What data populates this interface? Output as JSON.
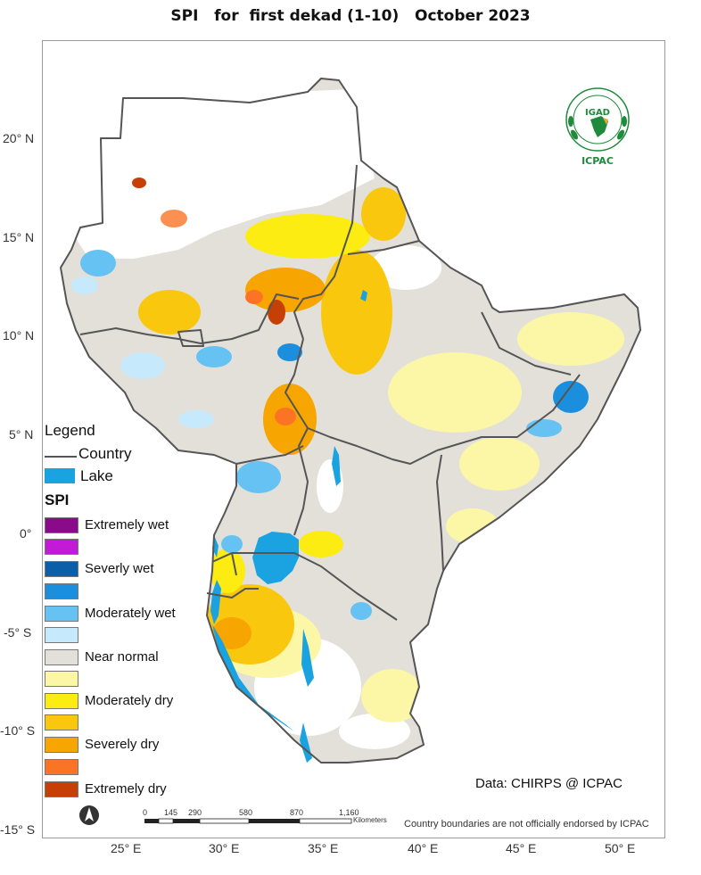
{
  "title": "SPI   for  first dekad (1-10)   October 2023",
  "latitude_labels": [
    "20° N",
    "15° N",
    "10° N",
    "5° N",
    "0°",
    "-5° S",
    "-10° S",
    "-15° S"
  ],
  "longitude_labels": [
    "25° E",
    "30° E",
    "35° E",
    "40° E",
    "45° E",
    "50° E"
  ],
  "legend": {
    "title": "Legend",
    "country_label": "Country",
    "lake_label": "Lake",
    "lake_color": "#1aa3e0",
    "spi_title": "SPI",
    "classes": [
      {
        "label": "Extremely wet",
        "color": "#8b0a8b"
      },
      {
        "label": "",
        "color": "#c21ad6"
      },
      {
        "label": "Severly wet",
        "color": "#0a5fa8"
      },
      {
        "label": "",
        "color": "#1b8fdd"
      },
      {
        "label": "Moderately wet",
        "color": "#66c2f2"
      },
      {
        "label": "",
        "color": "#c6e9fb"
      },
      {
        "label": "Near normal",
        "color": "#e3e0da"
      },
      {
        "label": "",
        "color": "#fbf7a6"
      },
      {
        "label": "Moderately dry",
        "color": "#fdec12"
      },
      {
        "label": "",
        "color": "#f9c80e"
      },
      {
        "label": "Severely dry",
        "color": "#f7a500"
      },
      {
        "label": "",
        "color": "#fb7426"
      },
      {
        "label": "Extremely dry",
        "color": "#c64005"
      }
    ]
  },
  "source": "Data: CHIRPS @ ICPAC",
  "disclaimer": "Country boundaries are not officially endorsed by ICPAC",
  "scale_bar": {
    "ticks": [
      "0",
      "145",
      "290",
      "580",
      "870",
      "1,160"
    ],
    "unit": "Kilometers"
  },
  "logo": {
    "top_text": "IGAD",
    "bottom_text": "ICPAC",
    "color": "#1f8a3c"
  },
  "icons": {
    "north_arrow": "north-arrow-icon"
  }
}
